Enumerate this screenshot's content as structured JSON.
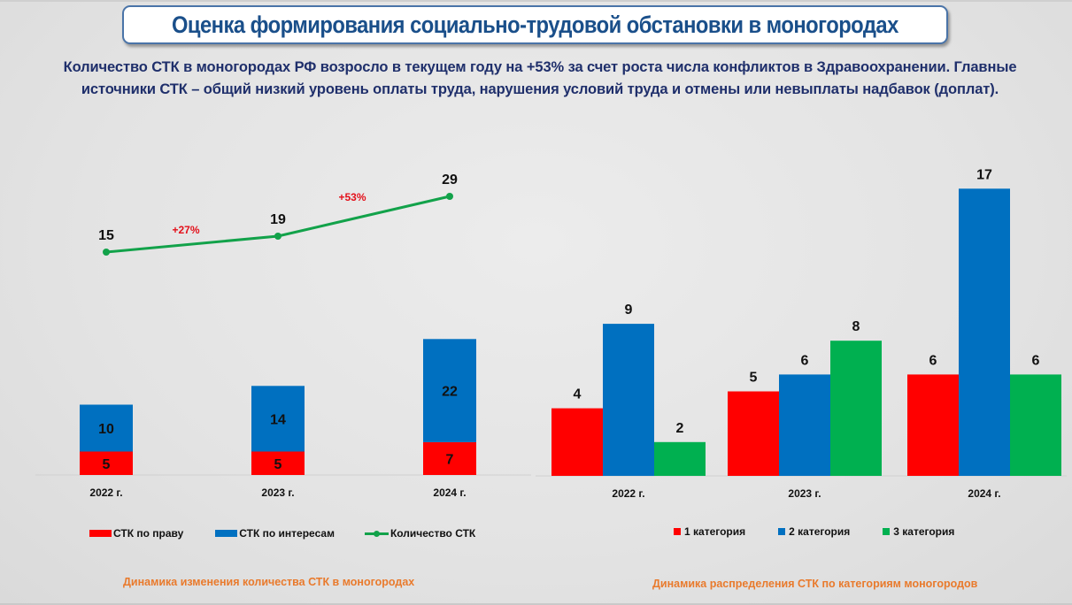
{
  "header": {
    "title": "Оценка формирования социально-трудовой обстановки в моногородах",
    "subtitle_line1": "Количество СТК в моногородах РФ возросло в текущем году на +53% за счет роста числа конфликтов в Здравоохранении. Главные",
    "subtitle_line2": "источники СТК – общий низкий уровень оплаты труда, нарушения условий труда и отмены или невыплаты надбавок (доплат)."
  },
  "colors": {
    "red": "#ff0000",
    "blue": "#0070c0",
    "green": "#00b050",
    "line_green": "#12a24a",
    "pct_red": "#e3101a",
    "caption_orange": "#e97a2c",
    "title_blue": "#1a4f8a",
    "subtitle_navy": "#1f2f6b"
  },
  "chart_data": [
    {
      "type": "bar",
      "subtype": "stacked bar with line overlay",
      "title": "Динамика изменения количества СТК в моногородах",
      "categories": [
        "2022 г.",
        "2023 г.",
        "2024 г."
      ],
      "series": [
        {
          "name": "СТК по праву",
          "type": "bar",
          "values": [
            5,
            5,
            7
          ],
          "color": "#ff0000"
        },
        {
          "name": "СТК по интересам",
          "type": "bar",
          "values": [
            10,
            14,
            22
          ],
          "color": "#0070c0"
        },
        {
          "name": "Количество СТК",
          "type": "line",
          "values": [
            15,
            19,
            29
          ],
          "color": "#12a24a"
        }
      ],
      "annotations": [
        "+27%",
        "+53%"
      ],
      "legend": [
        "СТК по праву",
        "СТК по интересам",
        "Количество СТК"
      ],
      "legend_position": "bottom",
      "xlabel": "",
      "ylabel": "",
      "grid": false
    },
    {
      "type": "bar",
      "subtype": "clustered",
      "title": "Динамика распределения СТК по категориям моногородов",
      "categories": [
        "2022 г.",
        "2023 г.",
        "2024 г."
      ],
      "series": [
        {
          "name": "1 категория",
          "values": [
            4,
            5,
            6
          ],
          "color": "#ff0000"
        },
        {
          "name": "2 категория",
          "values": [
            9,
            6,
            17
          ],
          "color": "#0070c0"
        },
        {
          "name": "3 категория",
          "values": [
            2,
            8,
            6
          ],
          "color": "#00b050"
        }
      ],
      "legend": [
        "1 категория",
        "2 категория",
        "3 категория"
      ],
      "legend_position": "bottom",
      "xlabel": "",
      "ylabel": "",
      "grid": false
    }
  ]
}
